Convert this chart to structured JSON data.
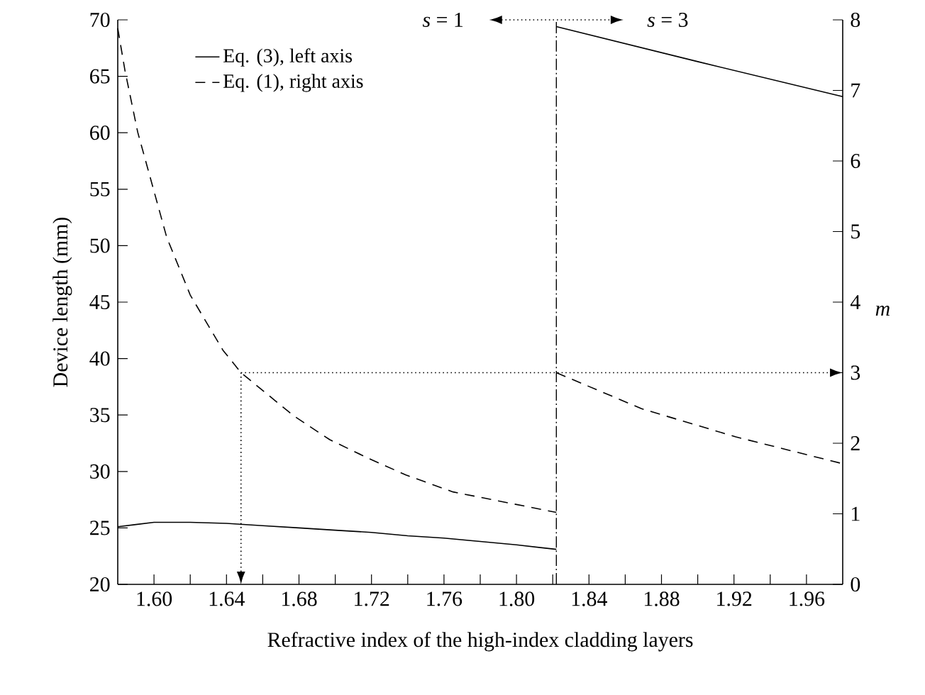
{
  "chart_data": {
    "type": "line",
    "xlabel": "Refractive index of the high-index cladding layers",
    "ylabel": "Device length (mm)",
    "y2label": "*m*",
    "xlim": [
      1.58,
      1.98
    ],
    "xticks": [
      {
        "value": 1.6,
        "label": "1.60"
      },
      1.64,
      1.68,
      1.72,
      1.76,
      {
        "value": 1.8,
        "label": "1.80"
      },
      1.84,
      1.88,
      1.92,
      1.96,
      {
        "value": 1.62,
        "label": null
      },
      {
        "value": 1.66,
        "label": null
      },
      {
        "value": 1.7,
        "label": null
      },
      {
        "value": 1.74,
        "label": null
      },
      {
        "value": 1.78,
        "label": null
      },
      {
        "value": 1.82,
        "label": null
      },
      {
        "value": 1.86,
        "label": null
      },
      {
        "value": 1.9,
        "label": null
      },
      {
        "value": 1.94,
        "label": null
      }
    ],
    "ylim": [
      20,
      70
    ],
    "yticks": [
      20,
      25,
      30,
      35,
      40,
      45,
      50,
      55,
      60,
      65,
      70
    ],
    "y2lim": [
      0,
      8
    ],
    "y2ticks": [
      0,
      1,
      2,
      3,
      4,
      5,
      6,
      7,
      8
    ],
    "legend": "top left",
    "series": [
      {
        "name": "Eq. (3), left axis",
        "color": "#000000",
        "line_style": "solid",
        "axis": "y",
        "x": [
          1.58,
          1.59,
          1.6,
          1.61,
          1.62,
          1.64,
          1.66,
          1.68,
          1.7,
          1.72,
          1.74,
          1.76,
          1.78,
          1.8,
          1.822
        ],
        "values": [
          25.1,
          25.3,
          25.5,
          25.5,
          25.5,
          25.4,
          25.2,
          25.0,
          24.8,
          24.6,
          24.3,
          24.1,
          23.8,
          23.5,
          23.1
        ]
      },
      {
        "color": "#000000",
        "line_style": "solid",
        "axis": "y",
        "x": [
          1.822,
          1.9,
          1.98
        ],
        "values": [
          69.4,
          66.3,
          63.2
        ]
      },
      {
        "name": "Eq. (1), right axis",
        "color": "#000000",
        "line_style": "dashed",
        "axis": "y2",
        "x": [
          1.58,
          1.584,
          1.591,
          1.607,
          1.62,
          1.638,
          1.648,
          1.677,
          1.697,
          1.718,
          1.739,
          1.765,
          1.822
        ],
        "values": [
          7.88,
          7.28,
          6.41,
          4.92,
          4.1,
          3.32,
          3.0,
          2.39,
          2.05,
          1.79,
          1.55,
          1.31,
          1.02
        ]
      },
      {
        "color": "#000000",
        "line_style": "dashed",
        "axis": "y2",
        "x": [
          1.822,
          1.869,
          1.921,
          1.98
        ],
        "values": [
          3.0,
          2.49,
          2.09,
          1.71
        ]
      }
    ],
    "ref_lines": [
      {
        "axis": "x",
        "value": 1.822,
        "line_style": "dashdot"
      }
    ],
    "annotations": [
      "*s* = 1",
      "*s* = 3"
    ]
  }
}
